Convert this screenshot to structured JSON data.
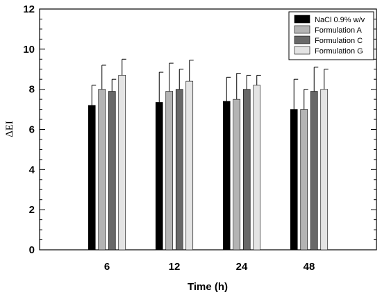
{
  "chart_data": {
    "type": "bar",
    "title": "",
    "xlabel": "Time (h)",
    "ylabel": "ΔEI",
    "ylim": [
      0,
      12
    ],
    "yticks": [
      0,
      2,
      4,
      6,
      8,
      10,
      12
    ],
    "categories": [
      "6",
      "12",
      "24",
      "48"
    ],
    "legend_position": "top-right",
    "grid": false,
    "series": [
      {
        "name": "NaCl 0.9% w/v",
        "color": "#000000",
        "values": [
          7.2,
          7.35,
          7.4,
          7.0
        ],
        "errors": [
          1.0,
          1.5,
          1.2,
          1.5
        ]
      },
      {
        "name": "Formulation A",
        "color": "#b4b4b4",
        "values": [
          8.0,
          7.9,
          7.5,
          7.0
        ],
        "errors": [
          1.2,
          1.4,
          1.3,
          1.0
        ]
      },
      {
        "name": "Formulation C",
        "color": "#686868",
        "values": [
          7.9,
          8.0,
          8.0,
          7.9
        ],
        "errors": [
          0.6,
          1.0,
          0.7,
          1.2
        ]
      },
      {
        "name": "Formulation G",
        "color": "#e4e4e4",
        "values": [
          8.7,
          8.4,
          8.2,
          8.0
        ],
        "errors": [
          0.8,
          1.05,
          0.5,
          1.0
        ]
      }
    ]
  }
}
